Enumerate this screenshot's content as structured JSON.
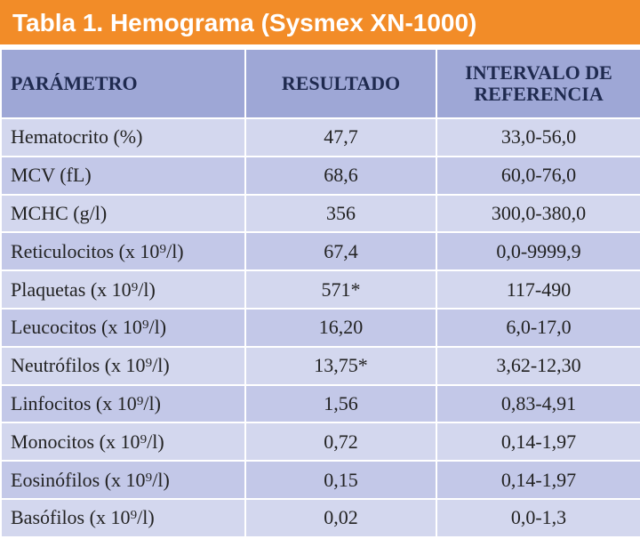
{
  "header": {
    "title": "Tabla 1. Hemograma (Sysmex XN-1000)"
  },
  "table": {
    "columns": [
      "PARÁMETRO",
      "RESULTADO",
      "INTERVALO DE REFERENCIA"
    ],
    "rows": [
      [
        "Hematocrito (%)",
        "47,7",
        "33,0-56,0"
      ],
      [
        "MCV (fL)",
        "68,6",
        "60,0-76,0"
      ],
      [
        "MCHC (g/l)",
        "356",
        "300,0-380,0"
      ],
      [
        "Reticulocitos (x 10⁹/l)",
        "67,4",
        "0,0-9999,9"
      ],
      [
        "Plaquetas (x 10⁹/l)",
        "571*",
        "117-490"
      ],
      [
        "Leucocitos (x 10⁹/l)",
        "16,20",
        "6,0-17,0"
      ],
      [
        "Neutrófilos (x 10⁹/l)",
        "13,75*",
        "3,62-12,30"
      ],
      [
        "Linfocitos (x 10⁹/l)",
        "1,56",
        "0,83-4,91"
      ],
      [
        "Monocitos (x 10⁹/l)",
        "0,72",
        "0,14-1,97"
      ],
      [
        "Eosinófilos (x 10⁹/l)",
        "0,15",
        "0,14-1,97"
      ],
      [
        "Basófilos (x 10⁹/l)",
        "0,02",
        "0,0-1,3"
      ]
    ]
  }
}
